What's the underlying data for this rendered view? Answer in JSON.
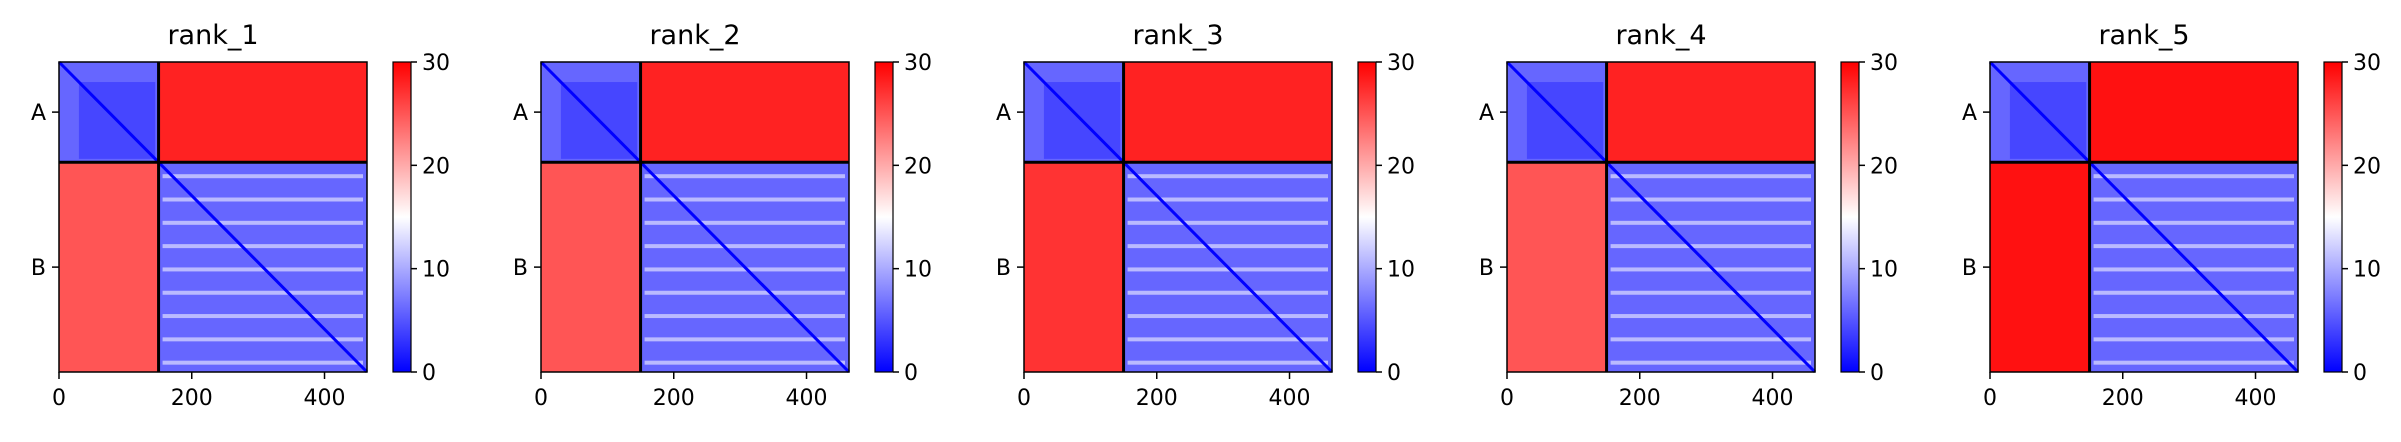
{
  "chart_data": [
    {
      "type": "heatmap",
      "title": "rank_1",
      "x": {
        "ticks": [
          0,
          200,
          400
        ],
        "lim": [
          0,
          464
        ]
      },
      "y": {
        "tick_labels": [
          {
            "label": "A",
            "value": 75
          },
          {
            "label": "B",
            "value": 307
          }
        ],
        "lim": [
          0,
          464
        ]
      },
      "chain_boundary": 150,
      "colorbar": {
        "ticks": [
          0,
          10,
          20,
          30
        ],
        "range": [
          0,
          30
        ],
        "colormap": "bwr",
        "low_color": "#0000ff",
        "mid_color": "#ffffff",
        "high_color": "#ff0000"
      },
      "blocks": [
        {
          "rows": "A",
          "cols": "A",
          "mean_value": 6
        },
        {
          "rows": "A",
          "cols": "B",
          "mean_value": 28
        },
        {
          "rows": "B",
          "cols": "A",
          "mean_value": 25
        },
        {
          "rows": "B",
          "cols": "B",
          "mean_value": 6
        }
      ]
    },
    {
      "type": "heatmap",
      "title": "rank_2",
      "x": {
        "ticks": [
          0,
          200,
          400
        ],
        "lim": [
          0,
          464
        ]
      },
      "y": {
        "tick_labels": [
          {
            "label": "A",
            "value": 75
          },
          {
            "label": "B",
            "value": 307
          }
        ],
        "lim": [
          0,
          464
        ]
      },
      "chain_boundary": 150,
      "colorbar": {
        "ticks": [
          0,
          10,
          20,
          30
        ],
        "range": [
          0,
          30
        ],
        "colormap": "bwr",
        "low_color": "#0000ff",
        "mid_color": "#ffffff",
        "high_color": "#ff0000"
      },
      "blocks": [
        {
          "rows": "A",
          "cols": "A",
          "mean_value": 6
        },
        {
          "rows": "A",
          "cols": "B",
          "mean_value": 28
        },
        {
          "rows": "B",
          "cols": "A",
          "mean_value": 25
        },
        {
          "rows": "B",
          "cols": "B",
          "mean_value": 6
        }
      ]
    },
    {
      "type": "heatmap",
      "title": "rank_3",
      "x": {
        "ticks": [
          0,
          200,
          400
        ],
        "lim": [
          0,
          464
        ]
      },
      "y": {
        "tick_labels": [
          {
            "label": "A",
            "value": 75
          },
          {
            "label": "B",
            "value": 307
          }
        ],
        "lim": [
          0,
          464
        ]
      },
      "chain_boundary": 150,
      "colorbar": {
        "ticks": [
          0,
          10,
          20,
          30
        ],
        "range": [
          0,
          30
        ],
        "colormap": "bwr",
        "low_color": "#0000ff",
        "mid_color": "#ffffff",
        "high_color": "#ff0000"
      },
      "blocks": [
        {
          "rows": "A",
          "cols": "A",
          "mean_value": 6
        },
        {
          "rows": "A",
          "cols": "B",
          "mean_value": 28
        },
        {
          "rows": "B",
          "cols": "A",
          "mean_value": 27
        },
        {
          "rows": "B",
          "cols": "B",
          "mean_value": 6
        }
      ]
    },
    {
      "type": "heatmap",
      "title": "rank_4",
      "x": {
        "ticks": [
          0,
          200,
          400
        ],
        "lim": [
          0,
          464
        ]
      },
      "y": {
        "tick_labels": [
          {
            "label": "A",
            "value": 75
          },
          {
            "label": "B",
            "value": 307
          }
        ],
        "lim": [
          0,
          464
        ]
      },
      "chain_boundary": 150,
      "colorbar": {
        "ticks": [
          0,
          10,
          20,
          30
        ],
        "range": [
          0,
          30
        ],
        "colormap": "bwr",
        "low_color": "#0000ff",
        "mid_color": "#ffffff",
        "high_color": "#ff0000"
      },
      "blocks": [
        {
          "rows": "A",
          "cols": "A",
          "mean_value": 6
        },
        {
          "rows": "A",
          "cols": "B",
          "mean_value": 28
        },
        {
          "rows": "B",
          "cols": "A",
          "mean_value": 25
        },
        {
          "rows": "B",
          "cols": "B",
          "mean_value": 6
        }
      ]
    },
    {
      "type": "heatmap",
      "title": "rank_5",
      "x": {
        "ticks": [
          0,
          200,
          400
        ],
        "lim": [
          0,
          464
        ]
      },
      "y": {
        "tick_labels": [
          {
            "label": "A",
            "value": 75
          },
          {
            "label": "B",
            "value": 307
          }
        ],
        "lim": [
          0,
          464
        ]
      },
      "chain_boundary": 150,
      "colorbar": {
        "ticks": [
          0,
          10,
          20,
          30
        ],
        "range": [
          0,
          30
        ],
        "colormap": "bwr",
        "low_color": "#0000ff",
        "mid_color": "#ffffff",
        "high_color": "#ff0000"
      },
      "blocks": [
        {
          "rows": "A",
          "cols": "A",
          "mean_value": 6
        },
        {
          "rows": "A",
          "cols": "B",
          "mean_value": 29
        },
        {
          "rows": "B",
          "cols": "A",
          "mean_value": 29
        },
        {
          "rows": "B",
          "cols": "B",
          "mean_value": 6
        }
      ]
    }
  ]
}
